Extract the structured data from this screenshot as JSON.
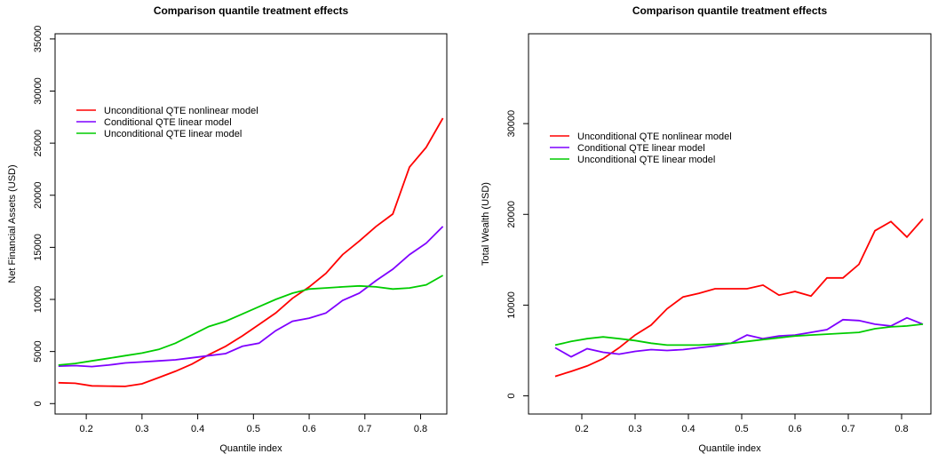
{
  "chart_data": [
    {
      "type": "line",
      "title": "Comparison quantile treatment effects",
      "xlabel": "Quantile index",
      "ylabel": "Net Financial Assets (USD)",
      "x": [
        0.15,
        0.18,
        0.21,
        0.24,
        0.27,
        0.3,
        0.33,
        0.36,
        0.39,
        0.42,
        0.45,
        0.48,
        0.51,
        0.54,
        0.57,
        0.6,
        0.63,
        0.66,
        0.69,
        0.72,
        0.75,
        0.78,
        0.81,
        0.84
      ],
      "xlim": [
        0.144,
        0.847
      ],
      "xticks": [
        0.2,
        0.3,
        0.4,
        0.5,
        0.6,
        0.7,
        0.8
      ],
      "ylim": [
        -1000,
        35500
      ],
      "yticks": [
        0,
        5000,
        10000,
        15000,
        20000,
        25000,
        30000,
        35000
      ],
      "legend": "topleft",
      "series": [
        {
          "name": "Unconditional QTE nonlinear model",
          "color": "#ff0000",
          "values": [
            2000,
            1950,
            1700,
            1680,
            1650,
            1900,
            2500,
            3100,
            3800,
            4700,
            5500,
            6500,
            7600,
            8700,
            10100,
            11200,
            12500,
            14300,
            15600,
            17000,
            18200,
            22700,
            24600,
            27400
          ]
        },
        {
          "name": "Conditional QTE linear model",
          "color": "#7f00ff",
          "values": [
            3600,
            3650,
            3550,
            3700,
            3900,
            4000,
            4100,
            4200,
            4400,
            4600,
            4800,
            5500,
            5800,
            7000,
            7900,
            8200,
            8700,
            9900,
            10600,
            11800,
            12900,
            14300,
            15400,
            17000
          ]
        },
        {
          "name": "Unconditional QTE linear model",
          "color": "#00cc00",
          "values": [
            3700,
            3850,
            4100,
            4350,
            4600,
            4850,
            5200,
            5800,
            6600,
            7400,
            7900,
            8600,
            9300,
            10000,
            10600,
            11000,
            11100,
            11200,
            11300,
            11200,
            11000,
            11100,
            11400,
            12300
          ]
        }
      ]
    },
    {
      "type": "line",
      "title": "Comparison quantile treatment effects",
      "xlabel": "Quantile index",
      "ylabel": "Total Wealth (USD)",
      "x": [
        0.15,
        0.18,
        0.21,
        0.24,
        0.27,
        0.3,
        0.33,
        0.36,
        0.39,
        0.42,
        0.45,
        0.48,
        0.51,
        0.54,
        0.57,
        0.6,
        0.63,
        0.66,
        0.69,
        0.72,
        0.75,
        0.78,
        0.81,
        0.84
      ],
      "xlim": [
        0.1,
        0.855
      ],
      "xticks": [
        0.2,
        0.3,
        0.4,
        0.5,
        0.6,
        0.7,
        0.8
      ],
      "ylim": [
        -2000,
        39900
      ],
      "yticks": [
        0,
        10000,
        20000,
        30000
      ],
      "legend": "topleft",
      "series": [
        {
          "name": "Unconditional QTE nonlinear model",
          "color": "#ff0000",
          "values": [
            2150,
            2700,
            3300,
            4100,
            5300,
            6700,
            7800,
            9600,
            10900,
            11300,
            11800,
            11800,
            11800,
            12200,
            11100,
            11500,
            11000,
            13000,
            13000,
            14500,
            18200,
            19200,
            17500,
            19500
          ]
        },
        {
          "name": "Conditional QTE linear model",
          "color": "#7f00ff",
          "values": [
            5300,
            4300,
            5200,
            4800,
            4600,
            4900,
            5100,
            5000,
            5100,
            5300,
            5500,
            5800,
            6700,
            6300,
            6600,
            6700,
            7000,
            7300,
            8400,
            8300,
            7900,
            7700,
            8600,
            7900
          ]
        },
        {
          "name": "Unconditional QTE linear model",
          "color": "#00cc00",
          "values": [
            5600,
            6000,
            6300,
            6500,
            6300,
            6100,
            5800,
            5600,
            5600,
            5600,
            5700,
            5800,
            6000,
            6200,
            6400,
            6600,
            6700,
            6800,
            6900,
            7000,
            7400,
            7600,
            7700,
            7900
          ]
        }
      ]
    }
  ]
}
